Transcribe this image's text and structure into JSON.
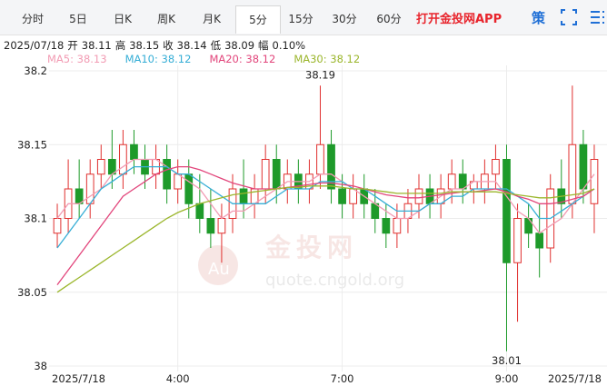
{
  "tabs": [
    "分时",
    "5日",
    "日K",
    "周K",
    "月K",
    "5分",
    "15分",
    "30分",
    "60分"
  ],
  "active_tab": "5分",
  "app_link": "打开金投网APP",
  "strategy": "策",
  "info": {
    "date": "2025/07/18",
    "fields": [
      {
        "label": "开",
        "value": 38.11
      },
      {
        "label": "高",
        "value": 38.15
      },
      {
        "label": "收",
        "value": 38.14
      },
      {
        "label": "低",
        "value": 38.09
      },
      {
        "label": "幅",
        "value": "0.10%"
      }
    ]
  },
  "watermark": {
    "logo": "Au",
    "name": "金投网",
    "url": "quote.cngold.org"
  },
  "chart_data": {
    "type": "candlestick",
    "up_color": "#e0302f",
    "down_color": "#1e9a2a",
    "ylim": [
      38,
      38.2
    ],
    "yticks": [
      38,
      38.05,
      38.1,
      38.15,
      38.2
    ],
    "grid": true,
    "categories": [
      "2025/7/18",
      null,
      null,
      null,
      null,
      null,
      null,
      null,
      null,
      null,
      null,
      "4:00",
      null,
      null,
      null,
      null,
      null,
      null,
      null,
      null,
      null,
      null,
      null,
      null,
      null,
      null,
      "7:00",
      null,
      null,
      null,
      null,
      null,
      null,
      null,
      null,
      null,
      null,
      null,
      null,
      null,
      null,
      "9:00",
      null,
      null,
      null,
      null,
      null,
      null,
      null,
      "2025/7/18"
    ],
    "candles": [
      [
        38.09,
        38.11,
        38.08,
        38.1
      ],
      [
        38.1,
        38.14,
        38.09,
        38.12
      ],
      [
        38.12,
        38.14,
        38.1,
        38.11
      ],
      [
        38.11,
        38.14,
        38.1,
        38.13
      ],
      [
        38.13,
        38.15,
        38.12,
        38.14
      ],
      [
        38.14,
        38.16,
        38.12,
        38.13
      ],
      [
        38.13,
        38.16,
        38.12,
        38.15
      ],
      [
        38.15,
        38.16,
        38.13,
        38.14
      ],
      [
        38.14,
        38.15,
        38.12,
        38.13
      ],
      [
        38.13,
        38.15,
        38.12,
        38.14
      ],
      [
        38.14,
        38.15,
        38.11,
        38.12
      ],
      [
        38.12,
        38.14,
        38.11,
        38.13
      ],
      [
        38.13,
        38.14,
        38.1,
        38.11
      ],
      [
        38.11,
        38.13,
        38.09,
        38.1
      ],
      [
        38.1,
        38.12,
        38.08,
        38.09
      ],
      [
        38.09,
        38.11,
        38.07,
        38.1
      ],
      [
        38.1,
        38.13,
        38.09,
        38.12
      ],
      [
        38.12,
        38.14,
        38.1,
        38.11
      ],
      [
        38.11,
        38.13,
        38.1,
        38.12
      ],
      [
        38.12,
        38.15,
        38.11,
        38.14
      ],
      [
        38.14,
        38.15,
        38.11,
        38.12
      ],
      [
        38.12,
        38.14,
        38.11,
        38.13
      ],
      [
        38.13,
        38.14,
        38.11,
        38.12
      ],
      [
        38.12,
        38.14,
        38.11,
        38.13
      ],
      [
        38.13,
        38.19,
        38.12,
        38.15
      ],
      [
        38.15,
        38.16,
        38.11,
        38.12
      ],
      [
        38.12,
        38.13,
        38.1,
        38.11
      ],
      [
        38.11,
        38.13,
        38.1,
        38.12
      ],
      [
        38.12,
        38.13,
        38.1,
        38.11
      ],
      [
        38.11,
        38.12,
        38.09,
        38.1
      ],
      [
        38.1,
        38.11,
        38.08,
        38.09
      ],
      [
        38.09,
        38.11,
        38.08,
        38.1
      ],
      [
        38.1,
        38.12,
        38.09,
        38.11
      ],
      [
        38.11,
        38.13,
        38.1,
        38.12
      ],
      [
        38.12,
        38.13,
        38.1,
        38.11
      ],
      [
        38.11,
        38.13,
        38.1,
        38.12
      ],
      [
        38.12,
        38.14,
        38.11,
        38.13
      ],
      [
        38.13,
        38.14,
        38.11,
        38.12
      ],
      [
        38.12,
        38.13,
        38.11,
        38.125
      ],
      [
        38.12,
        38.14,
        38.11,
        38.13
      ],
      [
        38.13,
        38.15,
        38.12,
        38.14
      ],
      [
        38.14,
        38.15,
        38.01,
        38.07
      ],
      [
        38.07,
        38.11,
        38.03,
        38.1
      ],
      [
        38.1,
        38.11,
        38.08,
        38.09
      ],
      [
        38.09,
        38.11,
        38.06,
        38.08
      ],
      [
        38.08,
        38.13,
        38.07,
        38.12
      ],
      [
        38.12,
        38.14,
        38.1,
        38.11
      ],
      [
        38.11,
        38.19,
        38.1,
        38.15
      ],
      [
        38.15,
        38.16,
        38.11,
        38.12
      ],
      [
        38.11,
        38.15,
        38.09,
        38.14
      ]
    ],
    "annotations": [
      "38.19",
      "38.01"
    ],
    "series": [
      {
        "name": "MA5: 38.13",
        "color": "#f29bb3",
        "values": [
          38.1,
          38.11,
          38.11,
          38.115,
          38.12,
          38.13,
          38.135,
          38.14,
          38.14,
          38.14,
          38.135,
          38.13,
          38.125,
          38.12,
          38.11,
          38.1,
          38.105,
          38.105,
          38.11,
          38.115,
          38.12,
          38.125,
          38.125,
          38.125,
          38.13,
          38.13,
          38.125,
          38.12,
          38.115,
          38.11,
          38.105,
          38.1,
          38.1,
          38.105,
          38.11,
          38.115,
          38.12,
          38.12,
          38.125,
          38.125,
          38.125,
          38.115,
          38.105,
          38.1,
          38.09,
          38.095,
          38.1,
          38.11,
          38.12,
          38.13
        ]
      },
      {
        "name": "MA10: 38.12",
        "color": "#36aed6",
        "values": [
          38.08,
          38.09,
          38.1,
          38.11,
          38.12,
          38.125,
          38.13,
          38.135,
          38.135,
          38.135,
          38.135,
          38.13,
          38.13,
          38.125,
          38.12,
          38.115,
          38.11,
          38.11,
          38.11,
          38.11,
          38.115,
          38.12,
          38.12,
          38.12,
          38.125,
          38.125,
          38.125,
          38.12,
          38.12,
          38.115,
          38.11,
          38.105,
          38.105,
          38.105,
          38.11,
          38.11,
          38.115,
          38.115,
          38.12,
          38.12,
          38.12,
          38.12,
          38.115,
          38.11,
          38.1,
          38.1,
          38.105,
          38.11,
          38.115,
          38.12
        ]
      },
      {
        "name": "MA20: 38.12",
        "color": "#e2457b",
        "values": [
          38.055,
          38.065,
          38.075,
          38.085,
          38.095,
          38.105,
          38.115,
          38.12,
          38.125,
          38.13,
          38.133,
          38.135,
          38.135,
          38.133,
          38.13,
          38.127,
          38.124,
          38.122,
          38.12,
          38.12,
          38.12,
          38.121,
          38.122,
          38.123,
          38.124,
          38.124,
          38.123,
          38.122,
          38.12,
          38.118,
          38.116,
          38.115,
          38.114,
          38.114,
          38.115,
          38.116,
          38.117,
          38.118,
          38.118,
          38.119,
          38.12,
          38.118,
          38.115,
          38.113,
          38.11,
          38.11,
          38.111,
          38.113,
          38.115,
          38.12
        ]
      },
      {
        "name": "MA30: 38.12",
        "color": "#9bb62c",
        "values": [
          38.05,
          38.055,
          38.06,
          38.065,
          38.07,
          38.075,
          38.08,
          38.085,
          38.09,
          38.095,
          38.1,
          38.104,
          38.107,
          38.11,
          38.112,
          38.114,
          38.116,
          38.117,
          38.118,
          38.119,
          38.12,
          38.121,
          38.121,
          38.122,
          38.122,
          38.122,
          38.121,
          38.12,
          38.12,
          38.119,
          38.118,
          38.117,
          38.117,
          38.117,
          38.117,
          38.117,
          38.118,
          38.118,
          38.118,
          38.118,
          38.118,
          38.117,
          38.116,
          38.115,
          38.114,
          38.114,
          38.115,
          38.116,
          38.117,
          38.12
        ]
      }
    ]
  }
}
